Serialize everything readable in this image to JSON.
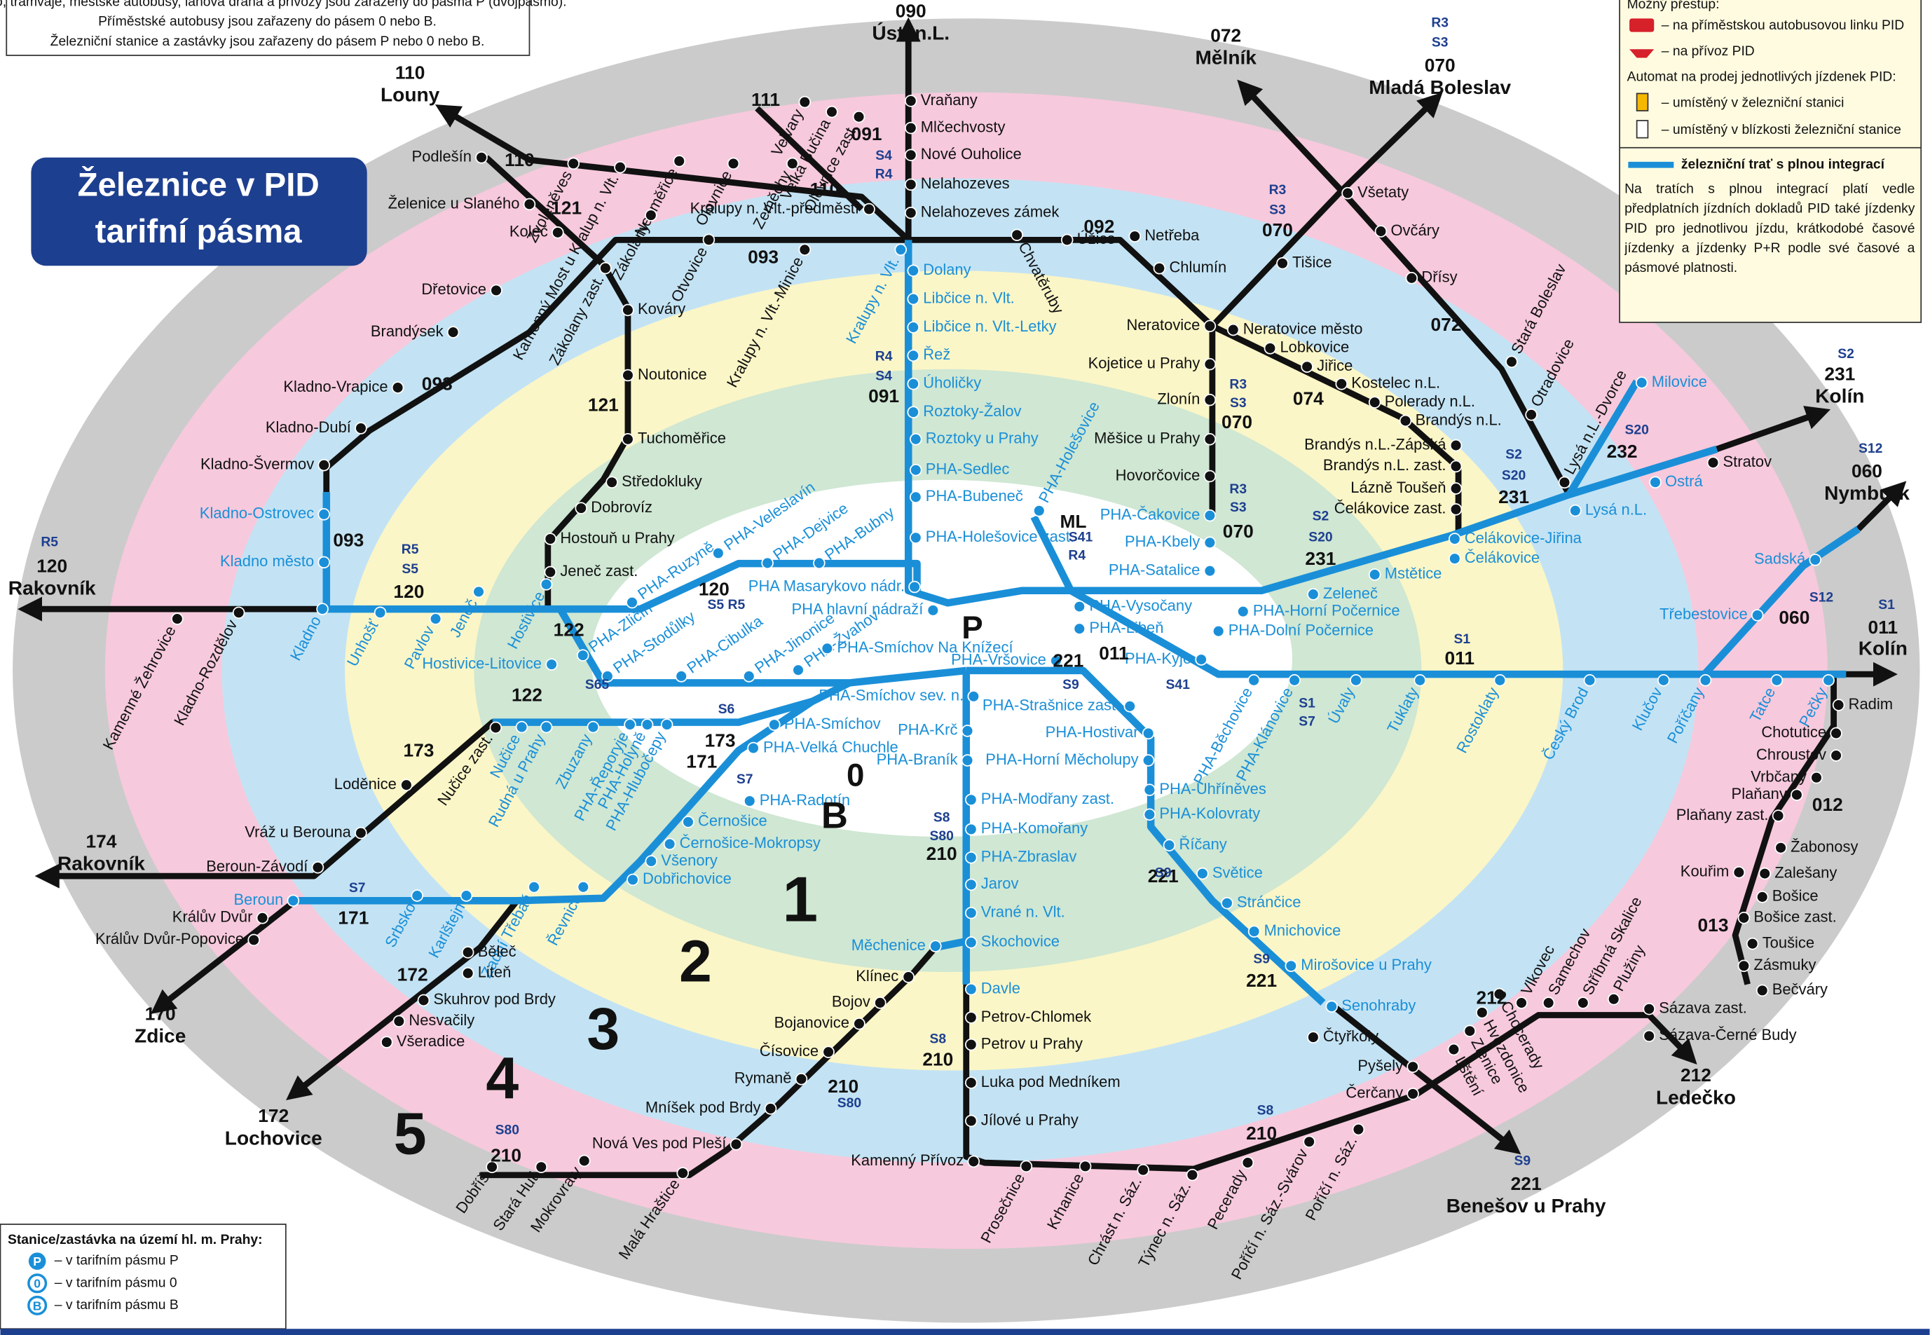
{
  "title_lines": [
    "Železnice v PID",
    "tarifní pásma"
  ],
  "note_lines": [
    "Metro, tramvaje, městské autobusy, lanová dráha a přívozy jsou zařazeny do pásma P (dvojpásmo).",
    "Příměstské autobusy jsou zařazeny do pásem 0 nebo B.",
    "Železniční stanice a zastávky jsou zařazeny do pásem P nebo 0 nebo B."
  ],
  "legend": {
    "transfer": "Možný přestup:",
    "bus": "– na příměstskou autobusovou linku PID",
    "ferry": "– na přívoz PID",
    "machine": "Automat na prodej jednotlivých jízdenek PID:",
    "machine_station": "– umístěný v železniční stanici",
    "machine_near": "– umístěný v blízkosti železniční stanice",
    "integrated": "železniční trať s plnou integrací",
    "integrated_text": "Na tratích s plnou integrací platí vedle předplatních jízdních dokladů PID také jízdenky PID pro jednotlivou jízdu, krátkodobé časové jízdenky a jízdenky P+R podle své časové a pásmové platnosti."
  },
  "zone_legend": {
    "title": "Stanice/zastávka na území hl. m. Prahy:",
    "p": "– v tarifním pásmu P",
    "zero": "– v tarifním pásmu 0",
    "b": "– v tarifním pásmu B",
    "icon_p": "P",
    "icon_0": "0",
    "icon_b": "B"
  },
  "zones": [
    "1",
    "2",
    "3",
    "4",
    "5",
    "B",
    "0",
    "P"
  ],
  "destinations": [
    {
      "name": "Ústí n.L.",
      "line": "090"
    },
    {
      "name": "Louny",
      "line": "110"
    },
    {
      "name": "Mělník",
      "line": "072"
    },
    {
      "name": "Mladá Boleslav",
      "line": "070"
    },
    {
      "name": "Kolín",
      "line": "231"
    },
    {
      "name": "Nymburk",
      "line": "060"
    },
    {
      "name": "Kolín",
      "line": "011"
    },
    {
      "name": "Rakovník",
      "line": "120"
    },
    {
      "name": "Rakovník",
      "line": "174"
    },
    {
      "name": "Zdice",
      "line": "170"
    },
    {
      "name": "Lochovice",
      "line": "172"
    },
    {
      "name": "Ledečko",
      "line": "212"
    },
    {
      "name": "Benešov u Prahy",
      "line": "221"
    }
  ],
  "line_labels": [
    "110",
    "121",
    "110",
    "093",
    "092",
    "093",
    "121",
    "093",
    "120",
    "122",
    "122",
    "173",
    "173",
    "171",
    "171",
    "172",
    "210",
    "210",
    "210",
    "210",
    "221",
    "221",
    "221",
    "011",
    "011",
    "060",
    "231",
    "231",
    "232",
    "070",
    "070",
    "070",
    "074",
    "072",
    "212",
    "012",
    "013",
    "120",
    "091",
    "091",
    "ML",
    "111",
    "210"
  ],
  "service_labels": [
    "S4",
    "R4",
    "R4",
    "S4",
    "R5",
    "S5",
    "S5 R5",
    "S65",
    "S6",
    "S7",
    "S7",
    "S8",
    "S80",
    "S8",
    "S80",
    "S80",
    "S8",
    "S9",
    "S9",
    "S9",
    "S41",
    "R4",
    "S41",
    "S1",
    "S7",
    "S1",
    "S12",
    "S1",
    "S2",
    "S20",
    "S2",
    "S20",
    "S20",
    "S12",
    "S2",
    "R3",
    "S3",
    "R3",
    "S3",
    "R3",
    "S3",
    "R5",
    "R3",
    "S3",
    "S9"
  ],
  "stations": [
    "Vraňany",
    "Mlčechvosty",
    "Nové Ouholice",
    "Nelahozeves",
    "Nelahozeves zámek",
    "Kralupy n. Vlt.",
    "Dolany",
    "Libčice n. Vlt.",
    "Libčice n. Vlt.-Letky",
    "Řež",
    "Úholičky",
    "Roztoky-Žalov",
    "Roztoky u Prahy",
    "PHA-Sedlec",
    "PHA-Bubeneč",
    "PHA-Holešovice zast.",
    "PHA Masarykovo nádr.",
    "PHA hlavní nádraží",
    "Podlešín",
    "Želenice u Slaného",
    "Koleč",
    "Zvoleněves",
    "Kamenný Most u Kralup n. Vlt.",
    "Neuměřice",
    "Olovnice",
    "Zeměchy",
    "Kralupy n. Vlt.-předměstí",
    "Velvary",
    "Velká Bučina",
    "Olovnice zast.",
    "Otvovice",
    "Kralupy n. Vlt.-Minice",
    "Zákolany",
    "Zákolany zast.",
    "Kladno-Švermov",
    "Kladno-Dubí",
    "Kladno-Vrapice",
    "Brandýsek",
    "Dřetovice",
    "Kováry",
    "Noutonice",
    "Tuchoměřice",
    "Středokluky",
    "Dobrovíz",
    "Hostouň u Prahy",
    "Jeneč zast.",
    "Kladno-Ostrovec",
    "Kladno město",
    "Kladno",
    "Unhošť",
    "Pavlov",
    "Jeneč",
    "Hostivice",
    "Hostivice-Litovice",
    "Kladno-Rozdělov",
    "Kamenné Žehrovice",
    "Chvatěruby",
    "Úžice",
    "Netřeba",
    "Chlumín",
    "Neratovice",
    "Neratovice město",
    "Lobkovice",
    "Kojetice u Prahy",
    "Zlonín",
    "Měšice u Prahy",
    "Hovorčovice",
    "Všetaty",
    "Ovčáry",
    "Dřísy",
    "Tišice",
    "Stará Boleslav",
    "Otradovice",
    "Lysá n.L.-Dvorce",
    "Jiřice",
    "Kostelec n.L.",
    "Polerady n.L.",
    "Brandýs n.L.",
    "Brandýs n.L.-Zápská",
    "Brandýs n.L. zast.",
    "Lázně Toušeň",
    "Čelákovice zast.",
    "Čelákovice-Jiřina",
    "Čelákovice",
    "Lysá n.L.",
    "Milovice",
    "Ostrá",
    "Stratov",
    "Mstětice",
    "Zeleneč",
    "PHA-Horní Počernice",
    "PHA-Dolní Počernice",
    "PHA-Kyje",
    "Úvaly",
    "Tuklaty",
    "Rostoklaty",
    "Český Brod",
    "Klučov",
    "Poříčany",
    "Tatce",
    "Pečky",
    "Radim",
    "Sadská",
    "Třebestovice",
    "Chotutice",
    "Chroustov",
    "Vrbčany",
    "Plaňany",
    "Plaňany zast.",
    "Kouřim",
    "Žabonosy",
    "Zalešany",
    "Bošice",
    "Bošice zast.",
    "Toušice",
    "Zásmuky",
    "Bečváry",
    "PHA-Holešovice",
    "PHA-Čakovice",
    "PHA-Kbely",
    "PHA-Satalice",
    "PHA-Vysočany",
    "PHA-Libeň",
    "PHA-Vršovice",
    "PHA-Smíchov sev. n.",
    "PHA-Strašnice zast.",
    "PHA-Hostivař",
    "PHA-Horní Měcholupy",
    "PHA-Uhříněves",
    "PHA-Kolovraty",
    "PHA-Běchovice",
    "PHA-Klánovice",
    "Říčany",
    "Světice",
    "Stránčice",
    "Mnichovice",
    "Mirošovice u Prahy",
    "Senohraby",
    "Čtyřkoly",
    "Pyšely",
    "Čerčany",
    "PHA-Krč",
    "PHA-Braník",
    "PHA-Modřany zast.",
    "PHA-Komořany",
    "PHA-Zbraslav",
    "Jarov",
    "Vrané n. Vlt.",
    "Skochovice",
    "Měchenice",
    "Davle",
    "Petrov-Chlomek",
    "Petrov u Prahy",
    "Luka pod Medníkem",
    "Jílové u Prahy",
    "Kamenný Přívoz",
    "Klínec",
    "Bojov",
    "Bojanovice",
    "Čísovice",
    "Rymaně",
    "Mníšek pod Brdy",
    "Nová Ves pod Pleší",
    "Malá Hraštice",
    "Mokrovraty",
    "Stará Huť",
    "Dobříš",
    "Prosečnice",
    "Krhanice",
    "Chrást n. Sáz.",
    "Týnec n. Sáz.",
    "Pecerady",
    "Poříčí n. Sáz.-Svárov",
    "Poříčí n. Sáz.",
    "Lštění",
    "Zlenice",
    "Hvězdonice",
    "Chocerady",
    "Vlkovec",
    "Samechov",
    "Stříbrná Skalice",
    "Plužiny",
    "Sázava zast.",
    "Sázava-Černé Budy",
    "PHA-Smíchov",
    "PHA-Velká Chuchle",
    "PHA-Radotín",
    "Černošice",
    "Černošice-Mokropsy",
    "Všenory",
    "Dobřichovice",
    "Řevnice",
    "Zadní Třebaň",
    "Karlštejn",
    "Srbsko",
    "Beroun",
    "Králův Dvůr",
    "Králův Dvůr-Popovice",
    "Běleč",
    "Liteň",
    "Skuhrov pod Brdy",
    "Nesvačily",
    "Všeradice",
    "Loděnice",
    "Vráž u Berouna",
    "Beroun-Závodí",
    "Nučice zast.",
    "Nučice",
    "Rudná u Prahy",
    "Zbuzany",
    "PHA-Řeporyje",
    "PHA-Holyně",
    "PHA-Hlubočepy",
    "PHA-Ruzyně",
    "PHA-Veleslavín",
    "PHA-Dejvice",
    "PHA-Bubny",
    "PHA-Zličín",
    "PHA-Stodůlky",
    "PHA-Cibulka",
    "PHA-Jinonice",
    "PHA-Žvahov",
    "PHA-Smíchov Na Knížecí"
  ]
}
